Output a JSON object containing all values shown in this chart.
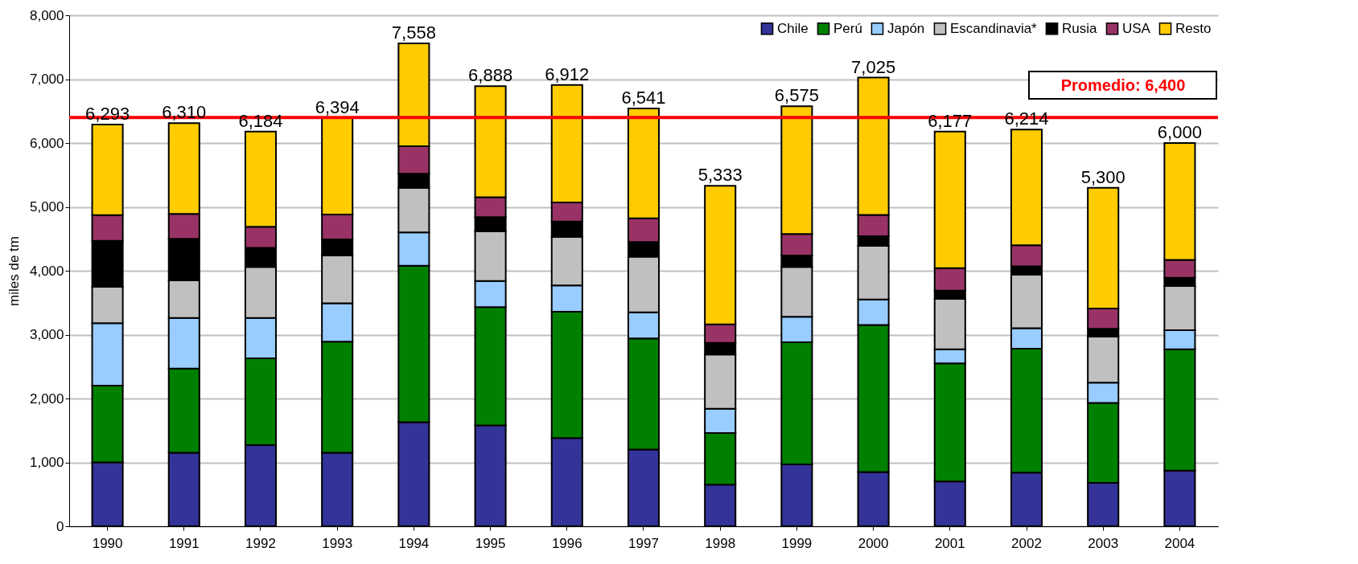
{
  "chart_data": {
    "type": "bar",
    "stacked": true,
    "ylabel": "miles de tm",
    "categories": [
      "1990",
      "1991",
      "1992",
      "1993",
      "1994",
      "1995",
      "1996",
      "1997",
      "1998",
      "1999",
      "2000",
      "2001",
      "2002",
      "2003",
      "2004"
    ],
    "series": [
      {
        "name": "Chile",
        "color": "#333399",
        "values": [
          1000,
          1150,
          1270,
          1150,
          1630,
          1580,
          1380,
          1200,
          650,
          970,
          850,
          700,
          840,
          680,
          870
        ]
      },
      {
        "name": "Perú",
        "color": "#008000",
        "values": [
          1200,
          1320,
          1360,
          1740,
          2450,
          1850,
          1980,
          1740,
          810,
          1910,
          2300,
          1850,
          1940,
          1250,
          1900
        ]
      },
      {
        "name": "Japón",
        "color": "#99ccff",
        "values": [
          980,
          790,
          630,
          600,
          520,
          410,
          410,
          410,
          380,
          400,
          400,
          220,
          320,
          320,
          300
        ]
      },
      {
        "name": "Escandinavia*",
        "color": "#c0c0c0",
        "values": [
          570,
          590,
          800,
          750,
          700,
          780,
          760,
          870,
          850,
          780,
          840,
          790,
          840,
          720,
          690
        ]
      },
      {
        "name": "Rusia",
        "color": "#000000",
        "values": [
          720,
          650,
          300,
          250,
          220,
          220,
          240,
          230,
          180,
          180,
          150,
          130,
          130,
          120,
          130
        ]
      },
      {
        "name": "USA",
        "color": "#993366",
        "values": [
          400,
          390,
          330,
          390,
          430,
          310,
          300,
          370,
          290,
          335,
          335,
          350,
          330,
          320,
          280
        ]
      },
      {
        "name": "Resto",
        "color": "#ffcc00",
        "values": [
          1420,
          1420,
          1490,
          1510,
          1610,
          1740,
          1840,
          1720,
          2170,
          2000,
          2150,
          2140,
          1810,
          1890,
          1830
        ]
      }
    ],
    "totals": [
      "6,293",
      "6,310",
      "6,184",
      "6,394",
      "7,558",
      "6,888",
      "6,912",
      "6,541",
      "5,333",
      "6,575",
      "7,025",
      "6,177",
      "6,214",
      "5,300",
      "6,000"
    ],
    "ylim": [
      0,
      8000
    ],
    "yticks": [
      0,
      {
        "value": 1000,
        "label": "1,000"
      },
      {
        "value": 2000,
        "label": "2,000"
      },
      {
        "value": 3000,
        "label": "3,000"
      },
      {
        "value": 4000,
        "label": "4,000"
      },
      {
        "value": 5000,
        "label": "5,000"
      },
      {
        "value": 6000,
        "label": "6,000"
      },
      {
        "value": 7000,
        "label": "7,000"
      },
      {
        "value": 8000,
        "label": "8,000"
      }
    ],
    "ref_lines": [
      {
        "axis": "y",
        "value": 6400,
        "label": "Promedio: 6,400",
        "color": "#ff0000"
      }
    ],
    "grid": "y",
    "legend": "top right"
  }
}
